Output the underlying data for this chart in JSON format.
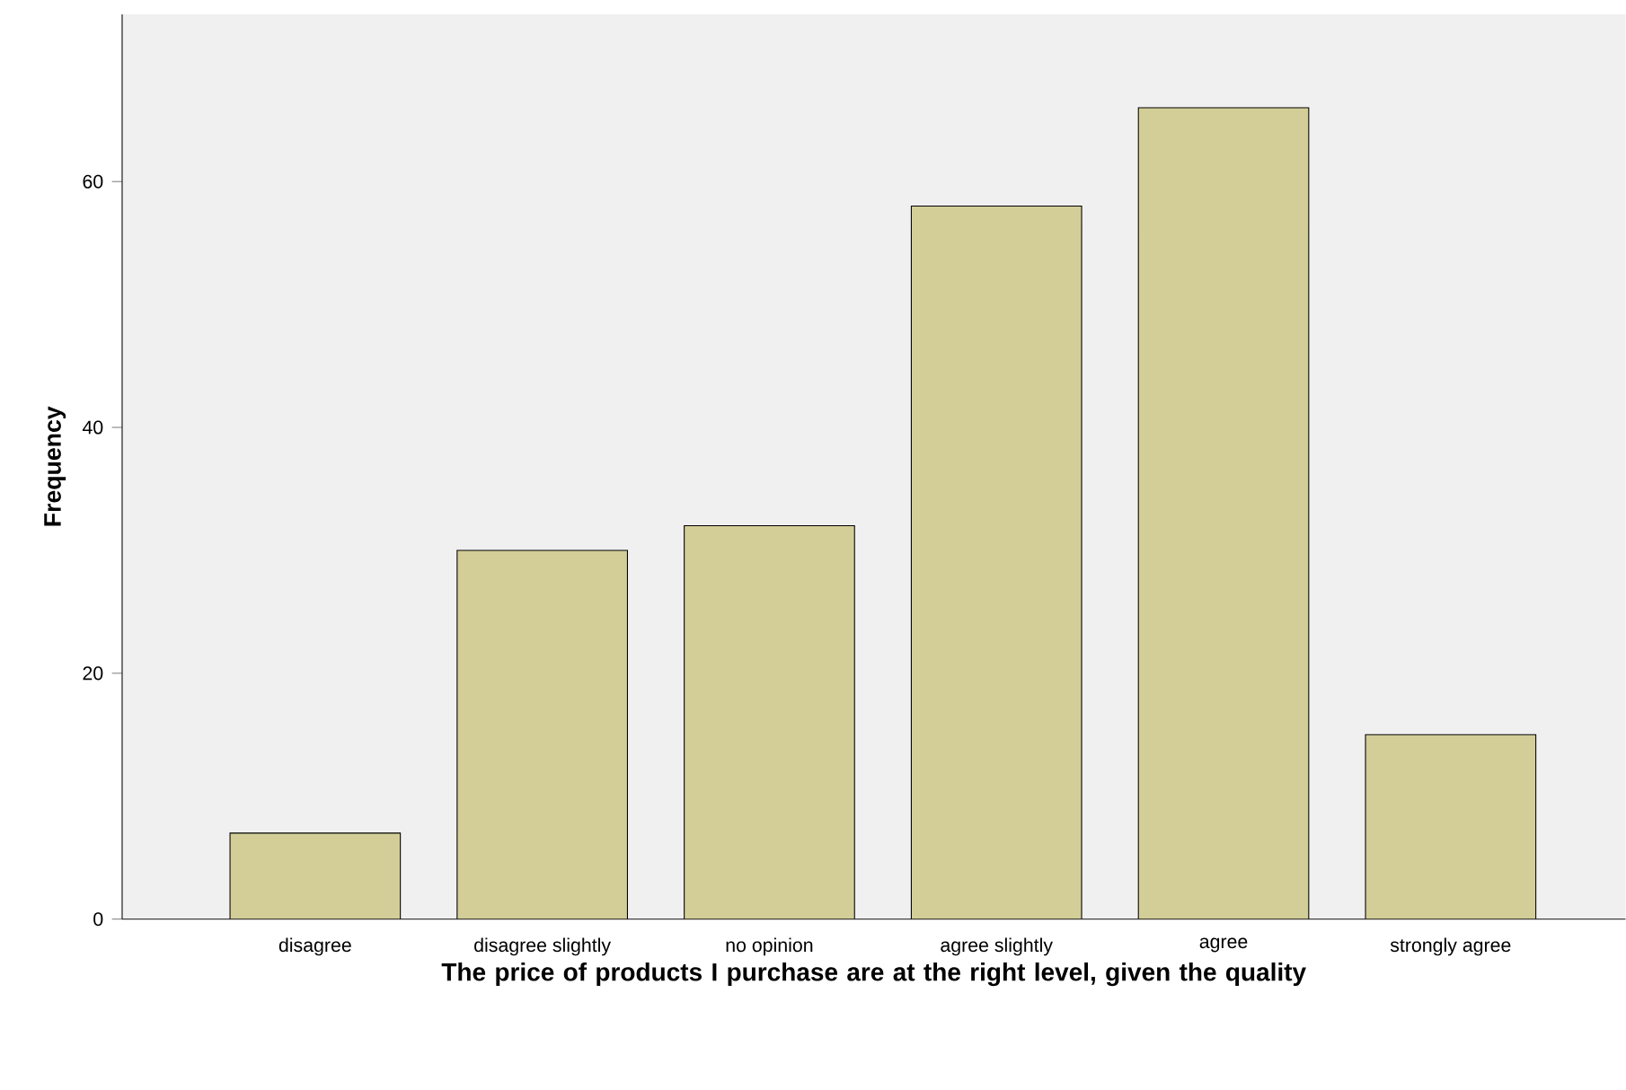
{
  "chart_data": {
    "type": "bar",
    "categories": [
      "disagree",
      "disagree slightly",
      "no opinion",
      "agree slightly",
      "agree",
      "strongly agree"
    ],
    "values": [
      7,
      30,
      32,
      58,
      66,
      15
    ],
    "color": "#d3ce97",
    "xlabel": "The price of products I purchase are at the right level, given the quality",
    "ylabel": "Frequency",
    "ylim": [
      0,
      73.6
    ],
    "yticks": [
      0,
      20,
      40,
      60
    ],
    "grid": false
  }
}
